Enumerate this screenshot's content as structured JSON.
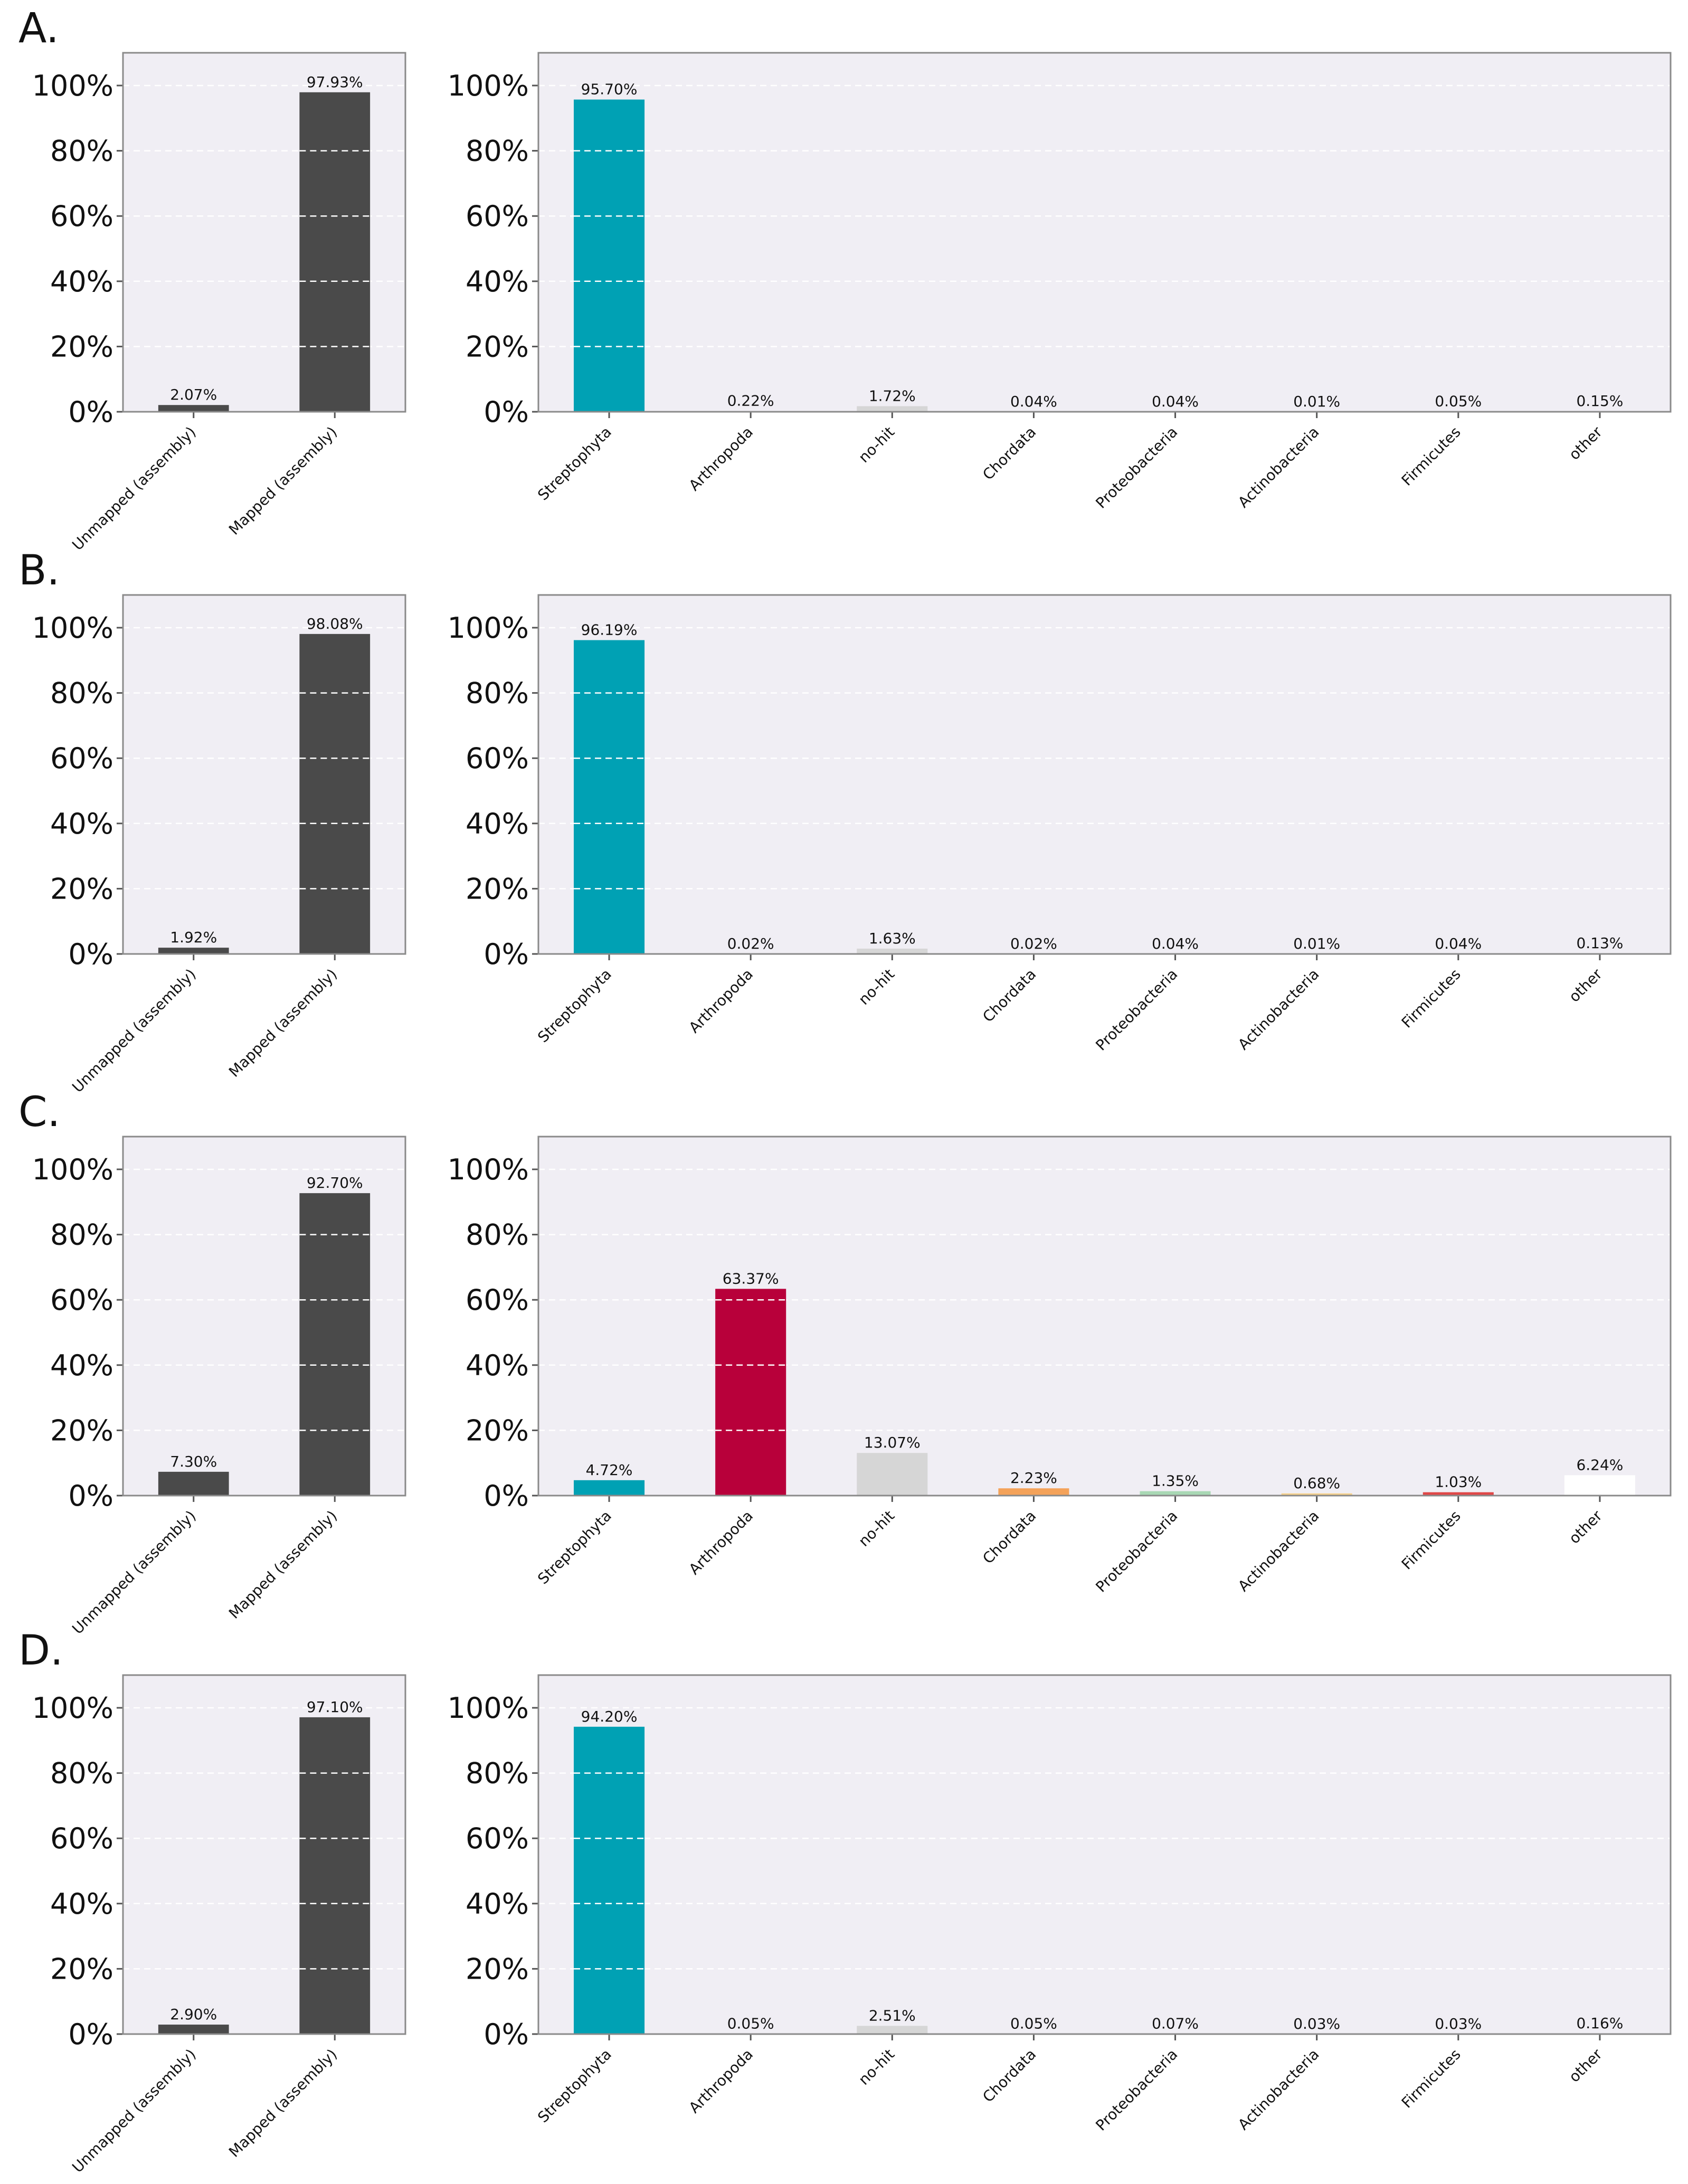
{
  "colors": {
    "mapping": "#4a4a4a",
    "Streptophyta": "#00a1b4",
    "Arthropoda": "#b8003a",
    "no-hit": "#d6d6d6",
    "Chordata": "#f4a259",
    "Proteobacteria": "#a8d8b4",
    "Actinobacteria": "#f7d08a",
    "Firmicutes": "#e04848",
    "other": "#ffffff"
  },
  "chart_data": [
    {
      "type": "bar",
      "panel": "A.",
      "subplots": [
        {
          "role": "mapping",
          "categories": [
            "Unmapped (assembly)",
            "Mapped (assembly)"
          ],
          "values": [
            2.07,
            97.93
          ],
          "value_labels": [
            "2.07%",
            "97.93%"
          ],
          "ylim": [
            0,
            110
          ],
          "yticks": [
            "0%",
            "20%",
            "40%",
            "60%",
            "80%",
            "100%"
          ],
          "grid": true
        },
        {
          "role": "taxonomy",
          "categories": [
            "Streptophyta",
            "Arthropoda",
            "no-hit",
            "Chordata",
            "Proteobacteria",
            "Actinobacteria",
            "Firmicutes",
            "other"
          ],
          "values": [
            95.7,
            0.22,
            1.72,
            0.04,
            0.04,
            0.01,
            0.05,
            0.15
          ],
          "value_labels": [
            "95.70%",
            "0.22%",
            "1.72%",
            "0.04%",
            "0.04%",
            "0.01%",
            "0.05%",
            "0.15%"
          ],
          "ylim": [
            0,
            110
          ],
          "yticks": [
            "0%",
            "20%",
            "40%",
            "60%",
            "80%",
            "100%"
          ],
          "grid": true
        }
      ]
    },
    {
      "type": "bar",
      "panel": "B.",
      "subplots": [
        {
          "role": "mapping",
          "categories": [
            "Unmapped (assembly)",
            "Mapped (assembly)"
          ],
          "values": [
            1.92,
            98.08
          ],
          "value_labels": [
            "1.92%",
            "98.08%"
          ],
          "ylim": [
            0,
            110
          ],
          "yticks": [
            "0%",
            "20%",
            "40%",
            "60%",
            "80%",
            "100%"
          ],
          "grid": true
        },
        {
          "role": "taxonomy",
          "categories": [
            "Streptophyta",
            "Arthropoda",
            "no-hit",
            "Chordata",
            "Proteobacteria",
            "Actinobacteria",
            "Firmicutes",
            "other"
          ],
          "values": [
            96.19,
            0.02,
            1.63,
            0.02,
            0.04,
            0.01,
            0.04,
            0.13
          ],
          "value_labels": [
            "96.19%",
            "0.02%",
            "1.63%",
            "0.02%",
            "0.04%",
            "0.01%",
            "0.04%",
            "0.13%"
          ],
          "ylim": [
            0,
            110
          ],
          "yticks": [
            "0%",
            "20%",
            "40%",
            "60%",
            "80%",
            "100%"
          ],
          "grid": true
        }
      ]
    },
    {
      "type": "bar",
      "panel": "C.",
      "subplots": [
        {
          "role": "mapping",
          "categories": [
            "Unmapped (assembly)",
            "Mapped (assembly)"
          ],
          "values": [
            7.3,
            92.7
          ],
          "value_labels": [
            "7.30%",
            "92.70%"
          ],
          "ylim": [
            0,
            110
          ],
          "yticks": [
            "0%",
            "20%",
            "40%",
            "60%",
            "80%",
            "100%"
          ],
          "grid": true
        },
        {
          "role": "taxonomy",
          "categories": [
            "Streptophyta",
            "Arthropoda",
            "no-hit",
            "Chordata",
            "Proteobacteria",
            "Actinobacteria",
            "Firmicutes",
            "other"
          ],
          "values": [
            4.72,
            63.37,
            13.07,
            2.23,
            1.35,
            0.68,
            1.03,
            6.24
          ],
          "value_labels": [
            "4.72%",
            "63.37%",
            "13.07%",
            "2.23%",
            "1.35%",
            "0.68%",
            "1.03%",
            "6.24%"
          ],
          "ylim": [
            0,
            110
          ],
          "yticks": [
            "0%",
            "20%",
            "40%",
            "60%",
            "80%",
            "100%"
          ],
          "grid": true
        }
      ]
    },
    {
      "type": "bar",
      "panel": "D.",
      "subplots": [
        {
          "role": "mapping",
          "categories": [
            "Unmapped (assembly)",
            "Mapped (assembly)"
          ],
          "values": [
            2.9,
            97.1
          ],
          "value_labels": [
            "2.90%",
            "97.10%"
          ],
          "ylim": [
            0,
            110
          ],
          "yticks": [
            "0%",
            "20%",
            "40%",
            "60%",
            "80%",
            "100%"
          ],
          "grid": true
        },
        {
          "role": "taxonomy",
          "categories": [
            "Streptophyta",
            "Arthropoda",
            "no-hit",
            "Chordata",
            "Proteobacteria",
            "Actinobacteria",
            "Firmicutes",
            "other"
          ],
          "values": [
            94.2,
            0.05,
            2.51,
            0.05,
            0.07,
            0.03,
            0.03,
            0.16
          ],
          "value_labels": [
            "94.20%",
            "0.05%",
            "2.51%",
            "0.05%",
            "0.07%",
            "0.03%",
            "0.03%",
            "0.16%"
          ],
          "ylim": [
            0,
            110
          ],
          "yticks": [
            "0%",
            "20%",
            "40%",
            "60%",
            "80%",
            "100%"
          ],
          "grid": true
        }
      ]
    }
  ]
}
